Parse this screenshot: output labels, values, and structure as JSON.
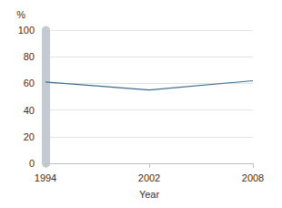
{
  "chart_data": {
    "type": "line",
    "x_label": "Year",
    "y_label": "%",
    "categories": [
      "1994",
      "2002",
      "2008"
    ],
    "values": [
      61,
      55,
      62
    ],
    "color": "#3d6e8f",
    "ylim": [
      0,
      100
    ],
    "yticks": [
      0,
      20,
      40,
      60,
      80,
      100
    ],
    "grid": true
  }
}
